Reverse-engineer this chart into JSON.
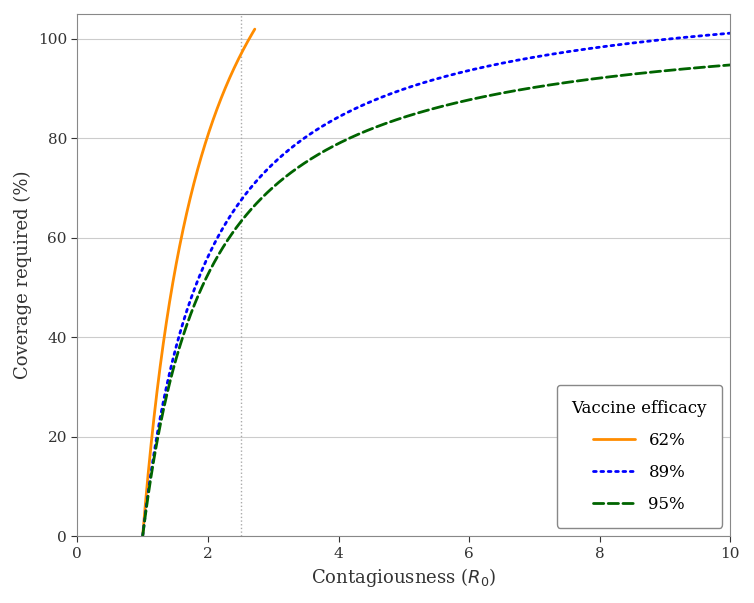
{
  "xlabel": "Contagiousness ($R_0$)",
  "ylabel": "Coverage required (%)",
  "xlim": [
    0,
    10
  ],
  "ylim": [
    0,
    105
  ],
  "xticks": [
    0,
    2,
    4,
    6,
    8,
    10
  ],
  "yticks": [
    0,
    20,
    40,
    60,
    80,
    100
  ],
  "efficacies": [
    0.62,
    0.89,
    0.95
  ],
  "efficacy_labels": [
    "62%",
    "89%",
    "95%"
  ],
  "colors": [
    "#FF8C00",
    "#0000FF",
    "#006400"
  ],
  "linestyles": [
    "solid",
    "dotted",
    "dashed"
  ],
  "linewidths": [
    2.0,
    2.0,
    2.0
  ],
  "vline_x": 2.5,
  "vline_color": "#aaaaaa",
  "vline_style": "dotted",
  "legend_title": "Vaccine efficacy",
  "background_color": "#ffffff",
  "plot_background": "#ffffff",
  "grid_color": "#cccccc",
  "spine_color": "#888888",
  "tick_fontsize": 11,
  "label_fontsize": 13,
  "legend_fontsize": 12
}
